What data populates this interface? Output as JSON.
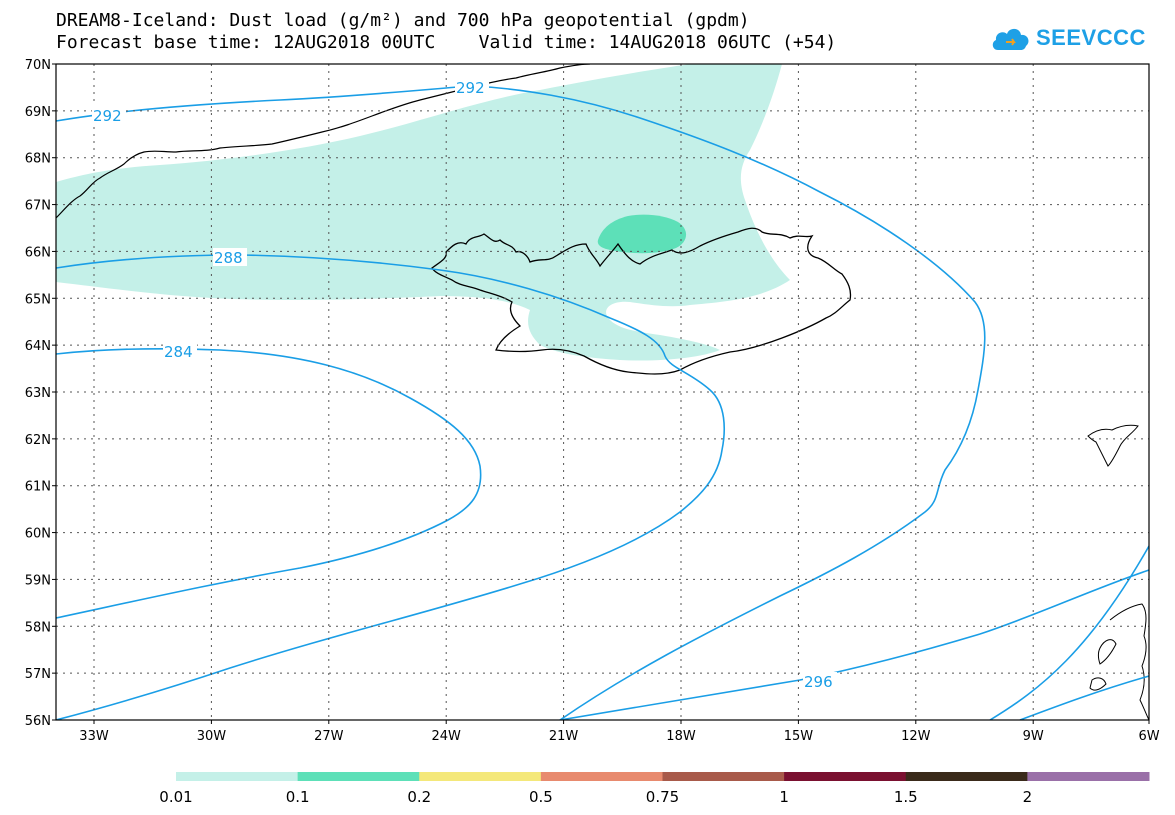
{
  "title_line1": "DREAM8-Iceland: Dust load (g/m²) and 700 hPa geopotential (gpdm)",
  "title_line2": "Forecast base time: 12AUG2018 00UTC    Valid time: 14AUG2018 06UTC (+54)",
  "logo_text": "SEEVCCC",
  "lat_labels": [
    "70N",
    "69N",
    "68N",
    "67N",
    "66N",
    "65N",
    "64N",
    "63N",
    "62N",
    "61N",
    "60N",
    "59N",
    "58N",
    "57N",
    "56N"
  ],
  "lon_labels": [
    "33W",
    "30W",
    "27W",
    "24W",
    "21W",
    "18W",
    "15W",
    "12W",
    "9W",
    "6W"
  ],
  "contour_labels": [
    "292",
    "292",
    "288",
    "284",
    "296"
  ],
  "colorbar": {
    "labels": [
      "0.01",
      "0.1",
      "0.2",
      "0.5",
      "0.75",
      "1",
      "1.5",
      "2"
    ],
    "colors": [
      "#c4f0e8",
      "#5de0b8",
      "#f4e87a",
      "#e88a6e",
      "#a85a4a",
      "#7a1030",
      "#3a2a1a",
      "#9a70a8"
    ]
  },
  "colors": {
    "dust_low": "#c4f0e8",
    "dust_mid": "#5de0b8",
    "contour": "#1a9ee6",
    "coast": "#000000"
  }
}
